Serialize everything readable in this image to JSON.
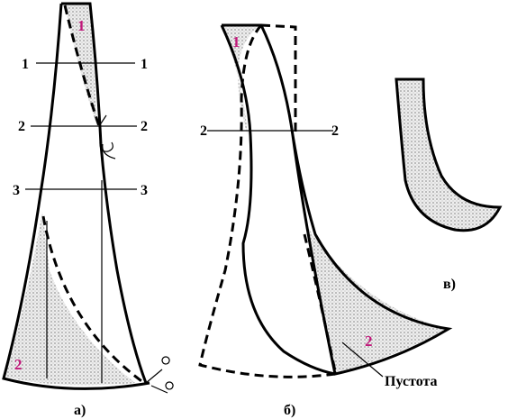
{
  "panels": [
    {
      "caption": "а)",
      "lines": [
        {
          "left": "1",
          "right": "1"
        },
        {
          "left": "2",
          "right": "2"
        },
        {
          "left": "3",
          "right": "3"
        }
      ],
      "regions": [
        "1",
        "2"
      ]
    },
    {
      "caption": "б)",
      "lines": [
        {
          "left": "2",
          "right": "2"
        }
      ],
      "regions": [
        "1",
        "2"
      ],
      "annotation": "Пустота"
    },
    {
      "caption": "в)"
    }
  ]
}
